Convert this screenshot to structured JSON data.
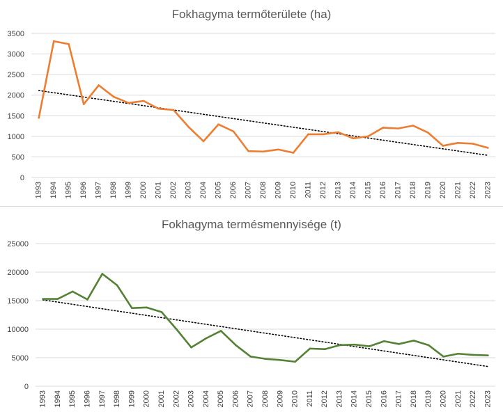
{
  "chart_data": [
    {
      "type": "line",
      "title": "Fokhagyma termőterülete (ha)",
      "xlabel": "",
      "ylabel": "",
      "ylim": [
        0,
        3500
      ],
      "yticks": [
        0,
        500,
        1000,
        1500,
        2000,
        2500,
        3000,
        3500
      ],
      "categories": [
        "1993",
        "1994",
        "1995",
        "1996",
        "1997",
        "1998",
        "1999",
        "2000",
        "2001",
        "2002",
        "2003",
        "2004",
        "2005",
        "2006",
        "2007",
        "2008",
        "2009",
        "2010",
        "2011",
        "2012",
        "2013",
        "2014",
        "2015",
        "2016",
        "2017",
        "2018",
        "2019",
        "2020",
        "2021",
        "2022",
        "2023"
      ],
      "series": [
        {
          "values": [
            1450,
            3310,
            3240,
            1780,
            2240,
            1960,
            1810,
            1860,
            1670,
            1640,
            1230,
            880,
            1290,
            1120,
            640,
            630,
            680,
            600,
            1050,
            1050,
            1100,
            950,
            1000,
            1210,
            1190,
            1260,
            1090,
            770,
            840,
            820,
            720
          ],
          "color": "#ed7d31"
        }
      ],
      "trendline": {
        "kind": "linear",
        "style": "dotted",
        "color": "#000000"
      },
      "grid": true,
      "legend": "none"
    },
    {
      "type": "line",
      "title": "Fokhagyma termésmennyisége (t)",
      "xlabel": "",
      "ylabel": "",
      "ylim": [
        0,
        25000
      ],
      "yticks": [
        0,
        5000,
        10000,
        15000,
        20000,
        25000
      ],
      "categories": [
        "1993",
        "1994",
        "1995",
        "1996",
        "1997",
        "1998",
        "1999",
        "2000",
        "2001",
        "2002",
        "2003",
        "2004",
        "2005",
        "2006",
        "2007",
        "2008",
        "2009",
        "2010",
        "2011",
        "2012",
        "2013",
        "2014",
        "2015",
        "2016",
        "2017",
        "2018",
        "2019",
        "2020",
        "2021",
        "2022",
        "2023"
      ],
      "series": [
        {
          "values": [
            15300,
            15300,
            16600,
            15200,
            19700,
            17700,
            13700,
            13800,
            13000,
            10000,
            6800,
            8400,
            9700,
            7200,
            5200,
            4800,
            4600,
            4300,
            6600,
            6500,
            7200,
            7300,
            7000,
            7900,
            7400,
            8000,
            7200,
            5200,
            5700,
            5500,
            5400
          ],
          "color": "#548235"
        }
      ],
      "trendline": {
        "kind": "linear",
        "style": "dotted",
        "color": "#000000"
      },
      "grid": true,
      "legend": "none"
    }
  ]
}
